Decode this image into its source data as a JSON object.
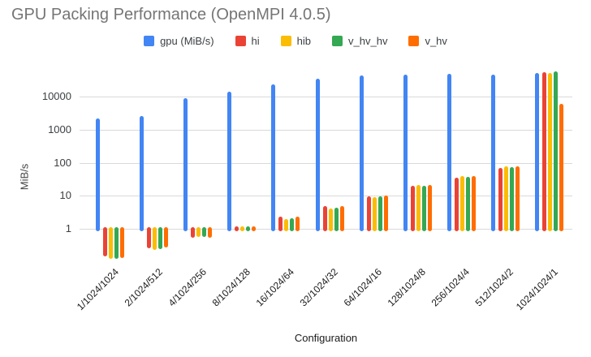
{
  "chart_data": {
    "type": "bar",
    "title": "GPU Packing Performance (OpenMPI 4.0.5)",
    "xlabel": "Configuration",
    "ylabel": "MiB/s",
    "y_scale": "log",
    "y_ticks": [
      1,
      10,
      100,
      1000,
      10000
    ],
    "ylim": [
      0.1,
      80000
    ],
    "grid": true,
    "legend_position": "top",
    "categories": [
      "1/1024/1024",
      "2/1024/512",
      "4/1024/256",
      "8/1024/128",
      "16/1024/64",
      "32/1024/32",
      "64/1024/16",
      "128/1024/8",
      "256/1024/4",
      "512/1024/2",
      "1024/1024/1"
    ],
    "series": [
      {
        "name": "gpu (MiB/s)",
        "color": "#4285F4",
        "values": [
          2200,
          2600,
          9000,
          14000,
          24000,
          35000,
          44000,
          47000,
          49000,
          46000,
          52000
        ]
      },
      {
        "name": "hi",
        "color": "#EA4335",
        "values": [
          0.17,
          0.29,
          0.62,
          1.2,
          2.3,
          4.7,
          9.7,
          20,
          36,
          69,
          56000
        ]
      },
      {
        "name": "hib",
        "color": "#FBBC04",
        "values": [
          0.14,
          0.27,
          0.65,
          1.2,
          2.0,
          4.1,
          9.2,
          21,
          39,
          79,
          52000
        ]
      },
      {
        "name": "v_hv_hv",
        "color": "#34A853",
        "values": [
          0.14,
          0.28,
          0.65,
          1.2,
          2.1,
          4.3,
          9.7,
          20,
          38,
          74,
          58000
        ]
      },
      {
        "name": "v_hv",
        "color": "#FF6D01",
        "values": [
          0.15,
          0.32,
          0.62,
          1.2,
          2.3,
          4.7,
          10,
          21,
          40,
          79,
          6200
        ]
      }
    ]
  },
  "colors": {
    "title_text": "#757575",
    "axis_text": "#3c4043",
    "gridline": "#d9d9d9",
    "background": "#ffffff"
  }
}
